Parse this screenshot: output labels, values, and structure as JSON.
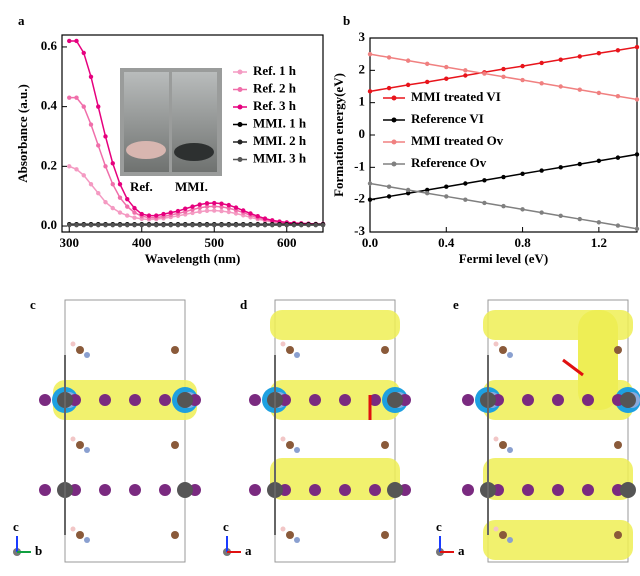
{
  "chart_data": [
    {
      "type": "line",
      "panel_label": "a",
      "xlabel": "Wavelength (nm)",
      "ylabel": "Absorbance (a.u.)",
      "xlim": [
        290,
        650
      ],
      "xticks": [
        300,
        400,
        500,
        600
      ],
      "ylim": [
        -0.02,
        0.64
      ],
      "yticks": [
        {
          "value": 0,
          "label": "0.0"
        },
        0.2,
        0.4,
        0.6
      ],
      "annotations": [
        "Ref.",
        "MMI."
      ],
      "x": [
        300,
        310,
        320,
        330,
        340,
        350,
        360,
        370,
        380,
        390,
        400,
        410,
        420,
        430,
        440,
        450,
        460,
        470,
        480,
        490,
        500,
        510,
        520,
        530,
        540,
        550,
        560,
        570,
        580,
        590,
        600,
        610,
        620,
        630,
        640,
        650
      ],
      "series": [
        {
          "name": "Ref. 1 h",
          "color": "#f49ac2",
          "values": [
            0.2,
            0.19,
            0.17,
            0.14,
            0.11,
            0.08,
            0.06,
            0.045,
            0.035,
            0.028,
            0.024,
            0.022,
            0.023,
            0.026,
            0.03,
            0.034,
            0.039,
            0.044,
            0.048,
            0.051,
            0.052,
            0.05,
            0.047,
            0.042,
            0.036,
            0.029,
            0.023,
            0.018,
            0.014,
            0.011,
            0.009,
            0.008,
            0.007,
            0.006,
            0.005,
            0.005
          ]
        },
        {
          "name": "Ref. 2 h",
          "color": "#f06eaa",
          "values": [
            0.43,
            0.43,
            0.4,
            0.34,
            0.27,
            0.2,
            0.14,
            0.095,
            0.065,
            0.045,
            0.033,
            0.028,
            0.028,
            0.032,
            0.037,
            0.042,
            0.048,
            0.055,
            0.061,
            0.065,
            0.066,
            0.064,
            0.06,
            0.053,
            0.045,
            0.036,
            0.028,
            0.021,
            0.016,
            0.013,
            0.01,
            0.009,
            0.008,
            0.007,
            0.006,
            0.006
          ]
        },
        {
          "name": "Ref. 3 h",
          "color": "#e6007e",
          "values": [
            0.62,
            0.62,
            0.58,
            0.5,
            0.4,
            0.3,
            0.21,
            0.14,
            0.09,
            0.06,
            0.04,
            0.035,
            0.035,
            0.04,
            0.045,
            0.05,
            0.058,
            0.065,
            0.072,
            0.076,
            0.077,
            0.075,
            0.07,
            0.062,
            0.052,
            0.042,
            0.033,
            0.025,
            0.019,
            0.015,
            0.012,
            0.01,
            0.009,
            0.008,
            0.007,
            0.007
          ]
        },
        {
          "name": "MMI. 1 h",
          "color": "#000000",
          "values": [
            0.006,
            0.006,
            0.006,
            0.006,
            0.006,
            0.006,
            0.006,
            0.006,
            0.006,
            0.006,
            0.006,
            0.006,
            0.006,
            0.006,
            0.006,
            0.006,
            0.006,
            0.006,
            0.006,
            0.006,
            0.006,
            0.006,
            0.006,
            0.006,
            0.006,
            0.006,
            0.006,
            0.006,
            0.006,
            0.006,
            0.006,
            0.006,
            0.006,
            0.006,
            0.006,
            0.006
          ]
        },
        {
          "name": "MMI. 2 h",
          "color": "#222222",
          "values": [
            0.004,
            0.004,
            0.004,
            0.004,
            0.004,
            0.004,
            0.004,
            0.004,
            0.004,
            0.004,
            0.004,
            0.004,
            0.004,
            0.004,
            0.004,
            0.004,
            0.004,
            0.004,
            0.004,
            0.004,
            0.004,
            0.004,
            0.004,
            0.004,
            0.004,
            0.004,
            0.004,
            0.004,
            0.004,
            0.004,
            0.004,
            0.004,
            0.004,
            0.004,
            0.004,
            0.004
          ]
        },
        {
          "name": "MMI. 3 h",
          "color": "#555555",
          "values": [
            0.003,
            0.003,
            0.003,
            0.003,
            0.003,
            0.003,
            0.003,
            0.003,
            0.003,
            0.003,
            0.003,
            0.003,
            0.003,
            0.003,
            0.003,
            0.003,
            0.003,
            0.003,
            0.003,
            0.003,
            0.003,
            0.003,
            0.003,
            0.003,
            0.003,
            0.003,
            0.003,
            0.003,
            0.003,
            0.003,
            0.003,
            0.003,
            0.003,
            0.003,
            0.003,
            0.003
          ]
        }
      ]
    },
    {
      "type": "line",
      "panel_label": "b",
      "xlabel": "Fermi level (eV)",
      "ylabel": "Formation energy(eV)",
      "xlim": [
        0,
        1.4
      ],
      "xticks": [
        {
          "value": 0,
          "label": "0.0"
        },
        0.4,
        0.8,
        1.2
      ],
      "ylim": [
        -3,
        3
      ],
      "yticks": [
        -3,
        -2,
        -1,
        0,
        1,
        2,
        3
      ],
      "x": [
        0,
        0.1,
        0.2,
        0.3,
        0.4,
        0.5,
        0.6,
        0.7,
        0.8,
        0.9,
        1.0,
        1.1,
        1.2,
        1.3,
        1.4
      ],
      "series": [
        {
          "name": "MMI treated VI",
          "color": "#e8141b",
          "values": [
            1.35,
            1.45,
            1.55,
            1.64,
            1.74,
            1.84,
            1.94,
            2.04,
            2.13,
            2.23,
            2.33,
            2.43,
            2.53,
            2.62,
            2.72
          ]
        },
        {
          "name": "Reference VI",
          "color": "#000000",
          "values": [
            -2.0,
            -1.9,
            -1.8,
            -1.7,
            -1.6,
            -1.5,
            -1.4,
            -1.3,
            -1.2,
            -1.1,
            -1.0,
            -0.9,
            -0.8,
            -0.7,
            -0.6
          ]
        },
        {
          "name": "MMI treated Ov",
          "color": "#f08080",
          "values": [
            2.5,
            2.4,
            2.3,
            2.2,
            2.1,
            2.0,
            1.9,
            1.8,
            1.7,
            1.6,
            1.5,
            1.4,
            1.3,
            1.2,
            1.1
          ]
        },
        {
          "name": "Reference Ov",
          "color": "#808080",
          "values": [
            -1.5,
            -1.6,
            -1.7,
            -1.8,
            -1.9,
            -2.0,
            -2.1,
            -2.2,
            -2.3,
            -2.4,
            -2.5,
            -2.6,
            -2.7,
            -2.8,
            -2.9
          ]
        }
      ]
    }
  ],
  "structures": [
    {
      "label": "c",
      "axes": [
        "c",
        "b"
      ]
    },
    {
      "label": "d",
      "axes": [
        "c",
        "a"
      ]
    },
    {
      "label": "e",
      "axes": [
        "c",
        "a"
      ]
    }
  ]
}
